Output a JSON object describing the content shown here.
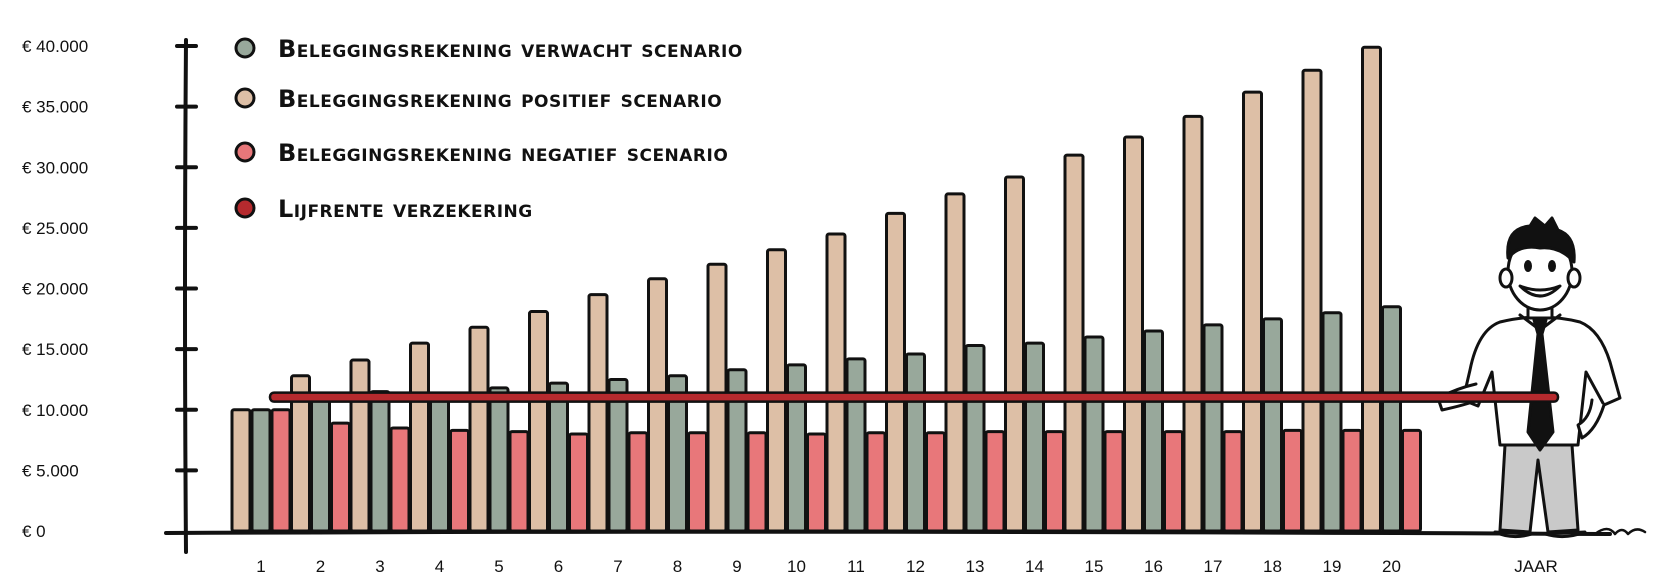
{
  "chart_data": {
    "type": "bar",
    "categories": [
      "1",
      "2",
      "3",
      "4",
      "5",
      "6",
      "7",
      "8",
      "9",
      "10",
      "11",
      "12",
      "13",
      "14",
      "15",
      "16",
      "17",
      "18",
      "19",
      "20"
    ],
    "xlabel": "JAAR",
    "ylabel": "",
    "ylim": [
      0,
      40000
    ],
    "yticks": [
      0,
      5000,
      10000,
      15000,
      20000,
      25000,
      30000,
      35000,
      40000
    ],
    "ytick_labels": [
      "€ 0",
      "€ 5.000",
      "€ 10.000",
      "€ 15.000",
      "€ 20.000",
      "€ 25.000",
      "€ 30.000",
      "€ 35.000",
      "€ 40.000"
    ],
    "grid": false,
    "legend_position": "top-left",
    "series": [
      {
        "name": "Beleggingsrekening verwacht scenario",
        "color": "#98a89b",
        "values": [
          10000,
          10800,
          11500,
          11300,
          11800,
          12200,
          12500,
          12800,
          13300,
          13700,
          14200,
          14600,
          15300,
          15500,
          16000,
          16500,
          17000,
          17500,
          18000,
          18500
        ]
      },
      {
        "name": "Beleggingsrekening positief scenario",
        "color": "#ddbfa6",
        "values": [
          10000,
          12800,
          14100,
          15500,
          16800,
          18100,
          19500,
          20800,
          22000,
          23200,
          24500,
          26200,
          27800,
          29200,
          31000,
          32500,
          34200,
          36200,
          38000,
          39900
        ]
      },
      {
        "name": "Beleggingsrekening negatief scenario",
        "color": "#e8777a",
        "values": [
          10000,
          8900,
          8500,
          8300,
          8200,
          8000,
          8100,
          8100,
          8100,
          8000,
          8100,
          8100,
          8200,
          8200,
          8200,
          8200,
          8200,
          8300,
          8300,
          8300
        ]
      },
      {
        "name": "Lijfrente verzekering",
        "color": "#b62a2e",
        "type": "line",
        "values": [
          11000,
          11000,
          11000,
          11000,
          11000,
          11000,
          11000,
          11000,
          11000,
          11000,
          11000,
          11000,
          11000,
          11000,
          11000,
          11000,
          11000,
          11000,
          11000,
          11000
        ]
      }
    ]
  },
  "legend": {
    "items": [
      {
        "label": "Beleggingsrekening verwacht scenario",
        "color": "#98a89b"
      },
      {
        "label": "Beleggingsrekening positief scenario",
        "color": "#ddbfa6"
      },
      {
        "label": "Beleggingsrekening negatief scenario",
        "color": "#e8777a"
      },
      {
        "label": "Lijfrente verzekering",
        "color": "#b62a2e"
      }
    ]
  },
  "character": {
    "icon": "smiling-man-presenting-icon"
  }
}
